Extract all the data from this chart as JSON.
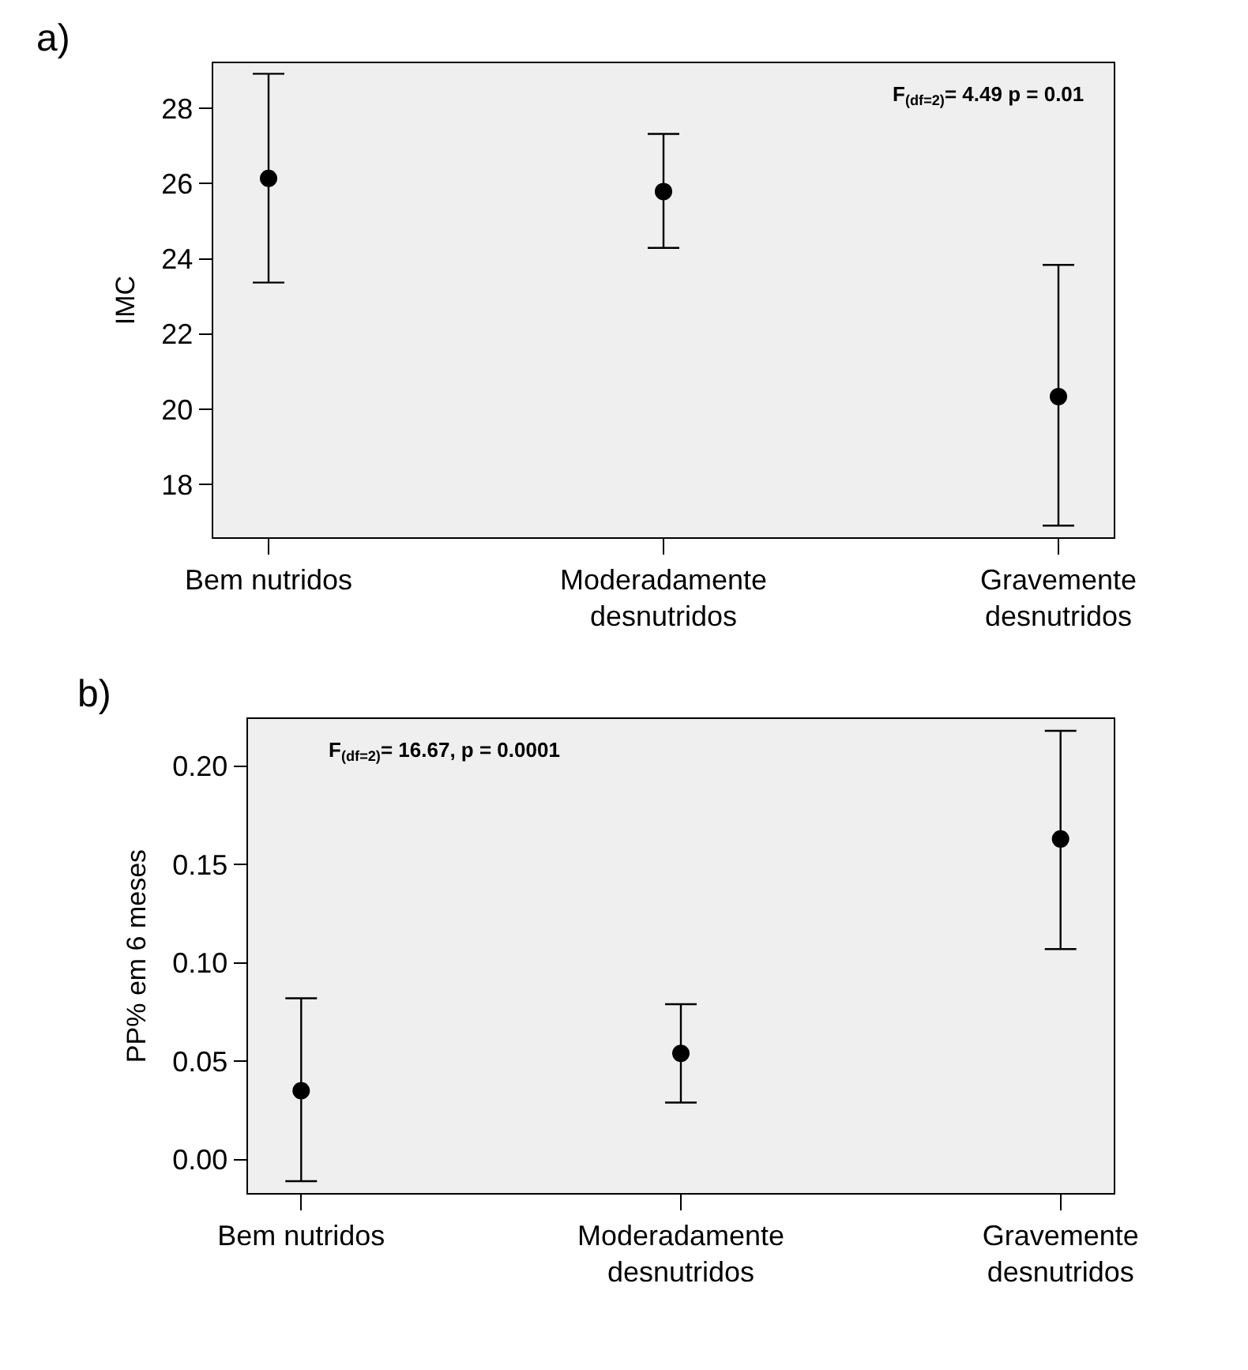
{
  "chart_data": [
    {
      "type": "scatter",
      "title": "a)",
      "ylabel": "IMC",
      "categories": [
        "Bem nutridos",
        "Moderadamente\ndesnutridos",
        "Gravemente\ndesnutridos"
      ],
      "values": [
        26.14,
        25.79,
        20.34
      ],
      "errors": [
        [
          23.37,
          28.92
        ],
        [
          24.29,
          27.32
        ],
        [
          16.91,
          23.84
        ]
      ],
      "color": "#000000",
      "marker": "circle",
      "grid": false,
      "legend": false,
      "ylim": [
        16.6,
        29.2
      ],
      "yticks": [
        18,
        20,
        22,
        24,
        26,
        28
      ],
      "annotations": [
        "F$_{(df=2)}$= 4.49 p = 0.01"
      ]
    },
    {
      "type": "scatter",
      "title": "b)",
      "ylabel": "PP% em 6 meses",
      "categories": [
        "Bem nutridos",
        "Moderadamente\ndesnutridos",
        "Gravemente\ndesnutridos"
      ],
      "values": [
        0.035,
        0.054,
        0.163
      ],
      "errors": [
        [
          -0.011,
          0.082
        ],
        [
          0.029,
          0.079
        ],
        [
          0.107,
          0.218
        ]
      ],
      "color": "#000000",
      "marker": "circle",
      "grid": false,
      "legend": false,
      "ylim": [
        -0.017,
        0.224
      ],
      "yticks": [
        {
          "value": 0,
          "label": "0.00"
        },
        {
          "value": 0.05,
          "label": "0.05"
        },
        {
          "value": 0.1,
          "label": "0.10"
        },
        {
          "value": 0.15,
          "label": "0.15"
        },
        {
          "value": 0.2,
          "label": "0.20"
        }
      ],
      "annotations": [
        "F$_{(df=2)}$= 16.67, p = 0.0001"
      ]
    }
  ]
}
